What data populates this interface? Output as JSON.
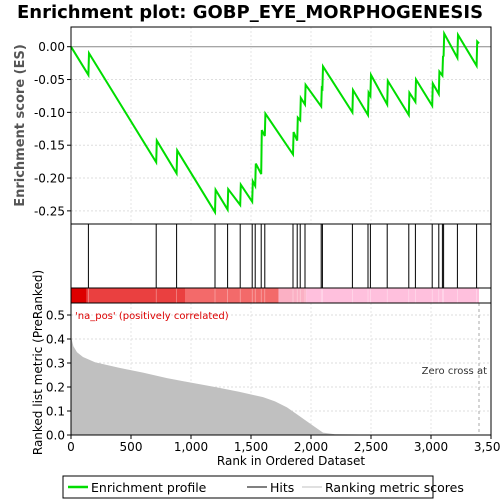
{
  "chart_data": {
    "title": "Enrichment plot: GOBP_EYE_MORPHOGENESIS",
    "type": "line",
    "panels": {
      "enrichment": {
        "ylabel": "Enrichment score (ES)",
        "ylim": [
          -0.27,
          0.03
        ],
        "yticks": [
          0.0,
          -0.05,
          -0.1,
          -0.15,
          -0.2,
          -0.25
        ],
        "ytick_labels": [
          "0.00",
          "-0.05",
          "-0.10",
          "-0.15",
          "-0.20",
          "-0.25"
        ],
        "line_color": "#00dd00",
        "points": [
          [
            0,
            0.0
          ],
          [
            145,
            -0.043
          ],
          [
            150,
            -0.01
          ],
          [
            710,
            -0.176
          ],
          [
            715,
            -0.143
          ],
          [
            880,
            -0.193
          ],
          [
            885,
            -0.158
          ],
          [
            1200,
            -0.252
          ],
          [
            1205,
            -0.218
          ],
          [
            1305,
            -0.248
          ],
          [
            1310,
            -0.217
          ],
          [
            1410,
            -0.241
          ],
          [
            1415,
            -0.21
          ],
          [
            1510,
            -0.236
          ],
          [
            1515,
            -0.205
          ],
          [
            1535,
            -0.212
          ],
          [
            1540,
            -0.178
          ],
          [
            1585,
            -0.194
          ],
          [
            1590,
            -0.127
          ],
          [
            1615,
            -0.136
          ],
          [
            1620,
            -0.102
          ],
          [
            1850,
            -0.164
          ],
          [
            1855,
            -0.13
          ],
          [
            1885,
            -0.143
          ],
          [
            1890,
            -0.108
          ],
          [
            1910,
            -0.112
          ],
          [
            1915,
            -0.078
          ],
          [
            1950,
            -0.088
          ],
          [
            1955,
            -0.058
          ],
          [
            2085,
            -0.091
          ],
          [
            2090,
            -0.063
          ],
          [
            2095,
            -0.064
          ],
          [
            2100,
            -0.03
          ],
          [
            2345,
            -0.1
          ],
          [
            2350,
            -0.066
          ],
          [
            2475,
            -0.104
          ],
          [
            2480,
            -0.07
          ],
          [
            2495,
            -0.075
          ],
          [
            2500,
            -0.043
          ],
          [
            2635,
            -0.088
          ],
          [
            2640,
            -0.052
          ],
          [
            2815,
            -0.104
          ],
          [
            2820,
            -0.07
          ],
          [
            2870,
            -0.084
          ],
          [
            2875,
            -0.05
          ],
          [
            3010,
            -0.09
          ],
          [
            3015,
            -0.056
          ],
          [
            3065,
            -0.072
          ],
          [
            3070,
            -0.038
          ],
          [
            3095,
            -0.044
          ],
          [
            3100,
            -0.015
          ],
          [
            3105,
            -0.014
          ],
          [
            3110,
            0.02
          ],
          [
            3220,
            -0.017
          ],
          [
            3225,
            0.018
          ],
          [
            3380,
            -0.029
          ],
          [
            3385,
            0.008
          ],
          [
            3400,
            0.005
          ]
        ]
      },
      "hits": {
        "positions": [
          145,
          710,
          880,
          1200,
          1305,
          1410,
          1510,
          1535,
          1585,
          1615,
          1850,
          1885,
          1910,
          1950,
          2085,
          2095,
          2345,
          2475,
          2495,
          2635,
          2815,
          2870,
          3010,
          3065,
          3095,
          3105,
          3220,
          3380
        ]
      },
      "ranked_metric": {
        "ylabel": "Ranked list metric (PreRanked)",
        "xlabel": "Rank in Ordered Dataset",
        "xlim": [
          0,
          3500
        ],
        "xticks": [
          0,
          500,
          1000,
          1500,
          2000,
          2500,
          3000,
          3500
        ],
        "xtick_labels": [
          "0",
          "500",
          "1,000",
          "1,500",
          "2,000",
          "2,500",
          "3,000",
          "3,500"
        ],
        "ylim": [
          0,
          0.55
        ],
        "yticks": [
          0.0,
          0.1,
          0.2,
          0.3,
          0.4,
          0.5
        ],
        "ytick_labels": [
          "0.0",
          "0.1",
          "0.2",
          "0.3",
          "0.4",
          "0.5"
        ],
        "area_color": "#c0c0c0",
        "points": [
          [
            0,
            0.41
          ],
          [
            20,
            0.37
          ],
          [
            50,
            0.345
          ],
          [
            100,
            0.325
          ],
          [
            200,
            0.303
          ],
          [
            400,
            0.28
          ],
          [
            600,
            0.26
          ],
          [
            800,
            0.237
          ],
          [
            1000,
            0.218
          ],
          [
            1200,
            0.2
          ],
          [
            1400,
            0.18
          ],
          [
            1600,
            0.158
          ],
          [
            1700,
            0.14
          ],
          [
            1800,
            0.115
          ],
          [
            1900,
            0.08
          ],
          [
            2000,
            0.045
          ],
          [
            2100,
            0.01
          ],
          [
            2200,
            0.003
          ],
          [
            2400,
            0.002
          ],
          [
            3000,
            0.001
          ],
          [
            3400,
            0.0
          ]
        ],
        "zero_cross_label": "Zero cross at",
        "zero_cross_rank": 3400,
        "positive_label": "'na_pos' (positively correlated)",
        "positive_label_color": "#dd0000"
      },
      "heatmap": {
        "segments": [
          {
            "start": 0,
            "end": 130,
            "color": "#dd0000"
          },
          {
            "start": 130,
            "end": 950,
            "color": "#ea4040"
          },
          {
            "start": 950,
            "end": 1730,
            "color": "#f36a6a"
          },
          {
            "start": 1730,
            "end": 1960,
            "color": "#fbb0c4"
          },
          {
            "start": 1960,
            "end": 3400,
            "color": "#ffc0dd"
          }
        ]
      }
    },
    "legend": {
      "placement": "bottom",
      "entries": [
        {
          "label": "Enrichment profile",
          "color": "#00dd00",
          "style": "thick-line"
        },
        {
          "label": "Hits",
          "color": "#000000",
          "style": "line"
        },
        {
          "label": "Ranking metric scores",
          "color": "#c0c0c0",
          "style": "line"
        }
      ]
    },
    "grid": true
  }
}
